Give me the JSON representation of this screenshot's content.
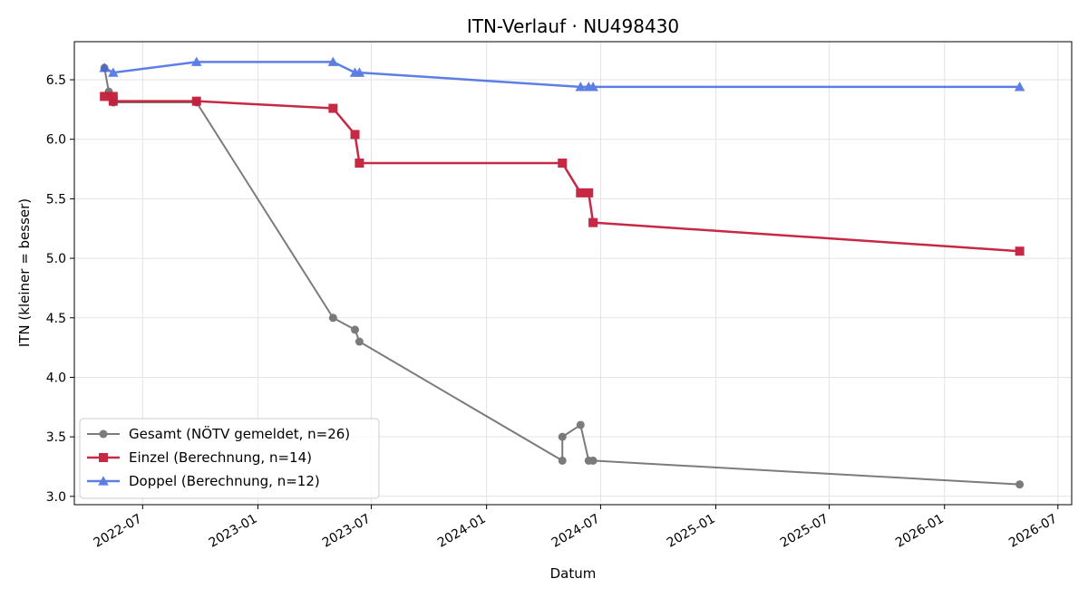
{
  "chart_data": {
    "type": "line",
    "title": "ITN-Verlauf · NU498430",
    "xlabel": "Datum",
    "ylabel": "ITN  (kleiner = besser)",
    "x_type": "date",
    "xlim": [
      "2022-03-14",
      "2026-07-23"
    ],
    "ylim": [
      2.93,
      6.82
    ],
    "x_ticks": [
      "2022-07-01",
      "2023-01-01",
      "2023-07-01",
      "2024-01-01",
      "2024-07-01",
      "2025-01-01",
      "2025-07-01",
      "2026-01-01",
      "2026-07-01"
    ],
    "x_tick_labels": [
      "2022-07",
      "2023-01",
      "2023-07",
      "2024-01",
      "2024-07",
      "2025-01",
      "2025-07",
      "2026-01",
      "2026-07"
    ],
    "y_ticks": [
      3.0,
      3.5,
      4.0,
      4.5,
      5.0,
      5.5,
      6.0,
      6.5
    ],
    "y_tick_labels": [
      "3.0",
      "3.5",
      "4.0",
      "4.5",
      "5.0",
      "5.5",
      "6.0",
      "6.5"
    ],
    "grid": true,
    "legend_position": "lower-left",
    "series": [
      {
        "name": "Gesamt (NÖTV gemeldet, n=26)",
        "color": "#444444",
        "marker": "circle",
        "points": [
          {
            "x": "2022-05-01",
            "y": 6.6
          },
          {
            "x": "2022-05-08",
            "y": 6.4
          },
          {
            "x": "2022-05-15",
            "y": 6.31
          },
          {
            "x": "2022-05-15",
            "y": 6.31
          },
          {
            "x": "2022-09-25",
            "y": 6.31
          },
          {
            "x": "2023-05-01",
            "y": 4.5
          },
          {
            "x": "2023-06-05",
            "y": 4.4
          },
          {
            "x": "2023-06-12",
            "y": 4.3
          },
          {
            "x": "2024-05-01",
            "y": 3.3
          },
          {
            "x": "2024-05-01",
            "y": 3.5
          },
          {
            "x": "2024-05-30",
            "y": 3.6
          },
          {
            "x": "2024-06-12",
            "y": 3.3
          },
          {
            "x": "2024-06-19",
            "y": 3.3
          },
          {
            "x": "2026-05-01",
            "y": 3.1
          }
        ]
      },
      {
        "name": "Einzel (Berechnung, n=14)",
        "color": "#c41e3a",
        "marker": "square",
        "points": [
          {
            "x": "2022-05-01",
            "y": 6.36
          },
          {
            "x": "2022-05-15",
            "y": 6.36
          },
          {
            "x": "2022-05-15",
            "y": 6.32
          },
          {
            "x": "2022-09-25",
            "y": 6.32
          },
          {
            "x": "2023-05-01",
            "y": 6.26
          },
          {
            "x": "2023-06-05",
            "y": 6.04
          },
          {
            "x": "2023-06-12",
            "y": 5.8
          },
          {
            "x": "2024-05-01",
            "y": 5.8
          },
          {
            "x": "2024-05-30",
            "y": 5.55
          },
          {
            "x": "2024-06-12",
            "y": 5.55
          },
          {
            "x": "2024-06-19",
            "y": 5.3
          },
          {
            "x": "2026-05-01",
            "y": 5.06
          }
        ]
      },
      {
        "name": "Doppel (Berechnung, n=12)",
        "color": "#4169e1",
        "marker": "triangle",
        "points": [
          {
            "x": "2022-05-01",
            "y": 6.6
          },
          {
            "x": "2022-05-15",
            "y": 6.56
          },
          {
            "x": "2022-09-25",
            "y": 6.65
          },
          {
            "x": "2023-05-01",
            "y": 6.65
          },
          {
            "x": "2023-06-05",
            "y": 6.56
          },
          {
            "x": "2023-06-12",
            "y": 6.56
          },
          {
            "x": "2024-05-30",
            "y": 6.44
          },
          {
            "x": "2024-06-12",
            "y": 6.44
          },
          {
            "x": "2024-06-19",
            "y": 6.44
          },
          {
            "x": "2026-05-01",
            "y": 6.44
          }
        ]
      }
    ]
  }
}
